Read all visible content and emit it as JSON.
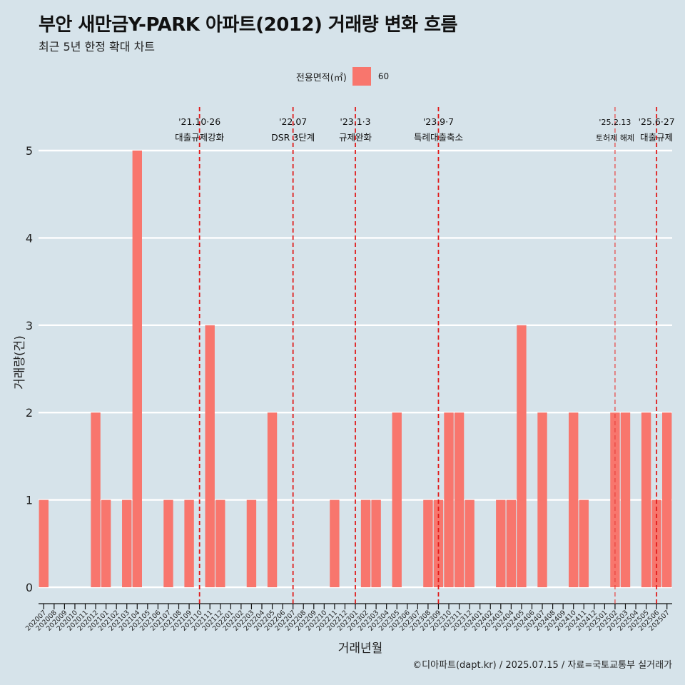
{
  "title": "부안 새만금Y-PARK 아파트(2012) 거래량 변화 흐름",
  "subtitle": "최근 5년 한정 확대 차트",
  "legend": {
    "title": "전용면적(㎡)",
    "items": [
      {
        "label": "60",
        "color": "#F8766D"
      }
    ]
  },
  "caption": "©디아파트(dapt.kr) / 2025.07.15 / 자료=국토교통부 실거래가",
  "chart_data": {
    "type": "bar",
    "title": "부안 새만금Y-PARK 아파트(2012) 거래량 변화 흐름",
    "subtitle": "최근 5년 한정 확대 차트",
    "xlabel": "거래년월",
    "ylabel": "거래량(건)",
    "ylim": [
      0,
      5
    ],
    "yticks": [
      0,
      1,
      2,
      3,
      4,
      5
    ],
    "grid": true,
    "legend_position": "top",
    "categories": [
      "202007",
      "202008",
      "202009",
      "202010",
      "202011",
      "202012",
      "202101",
      "202102",
      "202103",
      "202104",
      "202105",
      "202106",
      "202107",
      "202108",
      "202109",
      "202110",
      "202111",
      "202112",
      "202201",
      "202202",
      "202203",
      "202204",
      "202205",
      "202206",
      "202207",
      "202208",
      "202209",
      "202210",
      "202211",
      "202212",
      "202301",
      "202302",
      "202303",
      "202304",
      "202305",
      "202306",
      "202307",
      "202308",
      "202309",
      "202310",
      "202311",
      "202312",
      "202401",
      "202402",
      "202403",
      "202404",
      "202405",
      "202406",
      "202407",
      "202408",
      "202409",
      "202410",
      "202411",
      "202412",
      "202501",
      "202502",
      "202503",
      "202504",
      "202505",
      "202506",
      "202507"
    ],
    "series": [
      {
        "name": "60",
        "color": "#F8766D",
        "values": [
          1,
          0,
          0,
          0,
          0,
          2,
          1,
          0,
          1,
          5,
          0,
          0,
          1,
          0,
          1,
          0,
          3,
          1,
          0,
          0,
          1,
          0,
          2,
          0,
          0,
          0,
          0,
          0,
          1,
          0,
          0,
          1,
          1,
          0,
          2,
          0,
          0,
          1,
          1,
          2,
          2,
          1,
          0,
          0,
          1,
          1,
          3,
          0,
          2,
          0,
          0,
          2,
          1,
          0,
          0,
          2,
          2,
          0,
          2,
          1,
          2
        ]
      }
    ],
    "annotations": [
      {
        "category": "202110",
        "date": "'21.10·26",
        "label": "대출규제강화",
        "style": "dashed"
      },
      {
        "category": "202207",
        "date": "'22.07",
        "label": "DSR 3단계",
        "style": "dashed"
      },
      {
        "category": "202301",
        "date": "'23.1·3",
        "label": "규제완화",
        "style": "dashed"
      },
      {
        "category": "202309",
        "date": "'23.9·7",
        "label": "특례대출축소",
        "style": "dashed"
      },
      {
        "category": "202502",
        "date": "'25.2.13",
        "label": "토허제 해제",
        "style": "dashed-thin"
      },
      {
        "category": "202506",
        "date": "'25.6·27",
        "label": "대출규제",
        "style": "dashed"
      }
    ]
  }
}
